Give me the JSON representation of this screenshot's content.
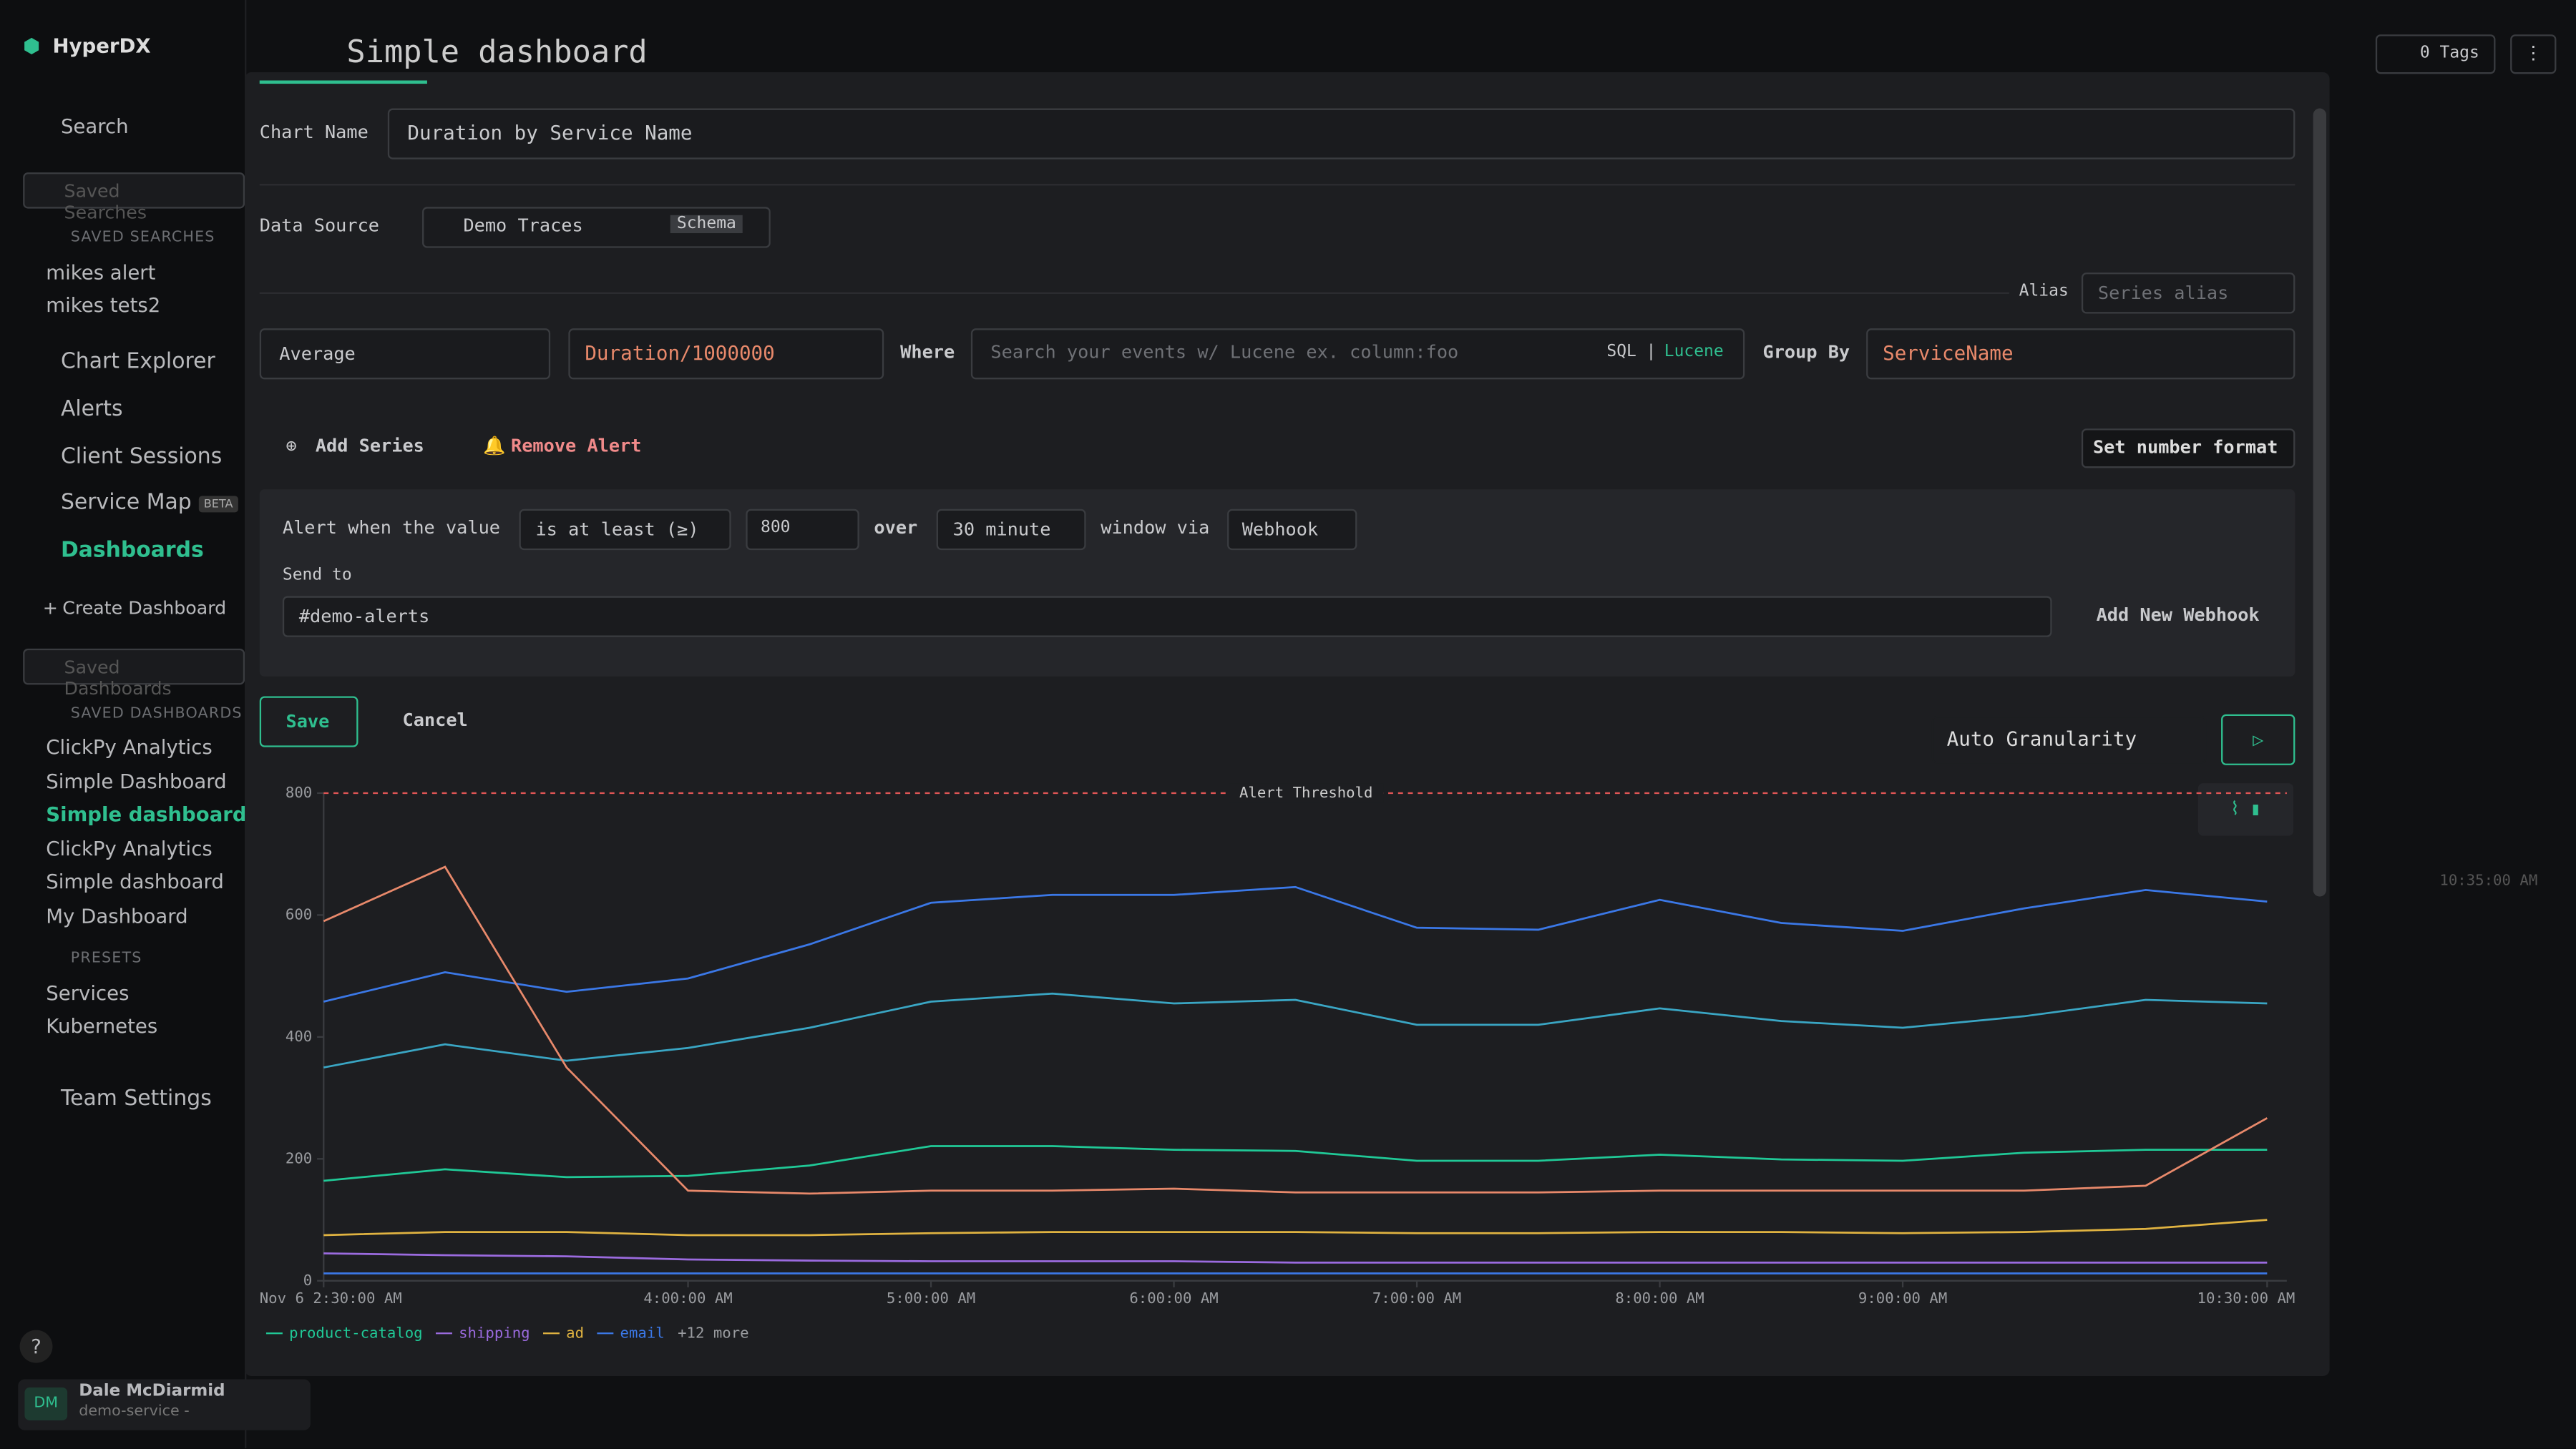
{
  "sidebar": {
    "brand": "HyperDX",
    "search": "Search",
    "saved_searches_placeholder": "Saved Searches",
    "saved_searches_heading": "SAVED SEARCHES",
    "saved_searches": [
      "mikes alert",
      "mikes tets2"
    ],
    "nav": [
      "Chart Explorer",
      "Alerts",
      "Client Sessions",
      "Service Map"
    ],
    "beta": "BETA",
    "dashboards": "Dashboards",
    "create_dashboard": "Create Dashboard",
    "saved_dashboards_placeholder": "Saved Dashboards",
    "saved_dashboards_heading": "SAVED DASHBOARDS",
    "saved_dashboards": [
      "ClickPy Analytics",
      "Simple Dashboard",
      "Simple dashboard",
      "ClickPy Analytics",
      "Simple dashboard",
      "My Dashboard"
    ],
    "presets_heading": "PRESETS",
    "presets": [
      "Services",
      "Kubernetes"
    ],
    "team_settings": "Team Settings",
    "help": "?",
    "user": {
      "initials": "DM",
      "name": "Dale McDiarmid",
      "team": "demo-service -"
    }
  },
  "header": {
    "title": "Simple dashboard",
    "tags": "0 Tags",
    "background_time": "10:35:00 AM"
  },
  "form": {
    "chart_name_label": "Chart Name",
    "chart_name": "Duration by Service Name",
    "data_source_label": "Data Source",
    "data_source": "Demo Traces",
    "schema": "Schema",
    "alias_label": "Alias",
    "alias_placeholder": "Series alias",
    "aggregation": "Average",
    "expression": "Duration/1000000",
    "where_label": "Where",
    "where_placeholder": "Search your events w/ Lucene ex. column:foo",
    "sql": "SQL",
    "separator": "|",
    "lucene": "Lucene",
    "group_by_label": "Group By",
    "group_by": "ServiceName",
    "add_series": "Add Series",
    "remove_alert": "Remove Alert",
    "number_format": "Set number format",
    "alert": {
      "prefix": "Alert when the value",
      "condition": "is at least (≥)",
      "threshold": "800",
      "over": "over",
      "window": "30 minute",
      "via": "window via",
      "channel": "Webhook",
      "send_to_label": "Send to",
      "send_to": "#demo-alerts",
      "add_webhook": "Add New Webhook"
    },
    "save": "Save",
    "cancel": "Cancel",
    "granularity": "Auto Granularity"
  },
  "chart_data": {
    "type": "line",
    "threshold": {
      "value": 800,
      "label": "Alert Threshold"
    },
    "x": [
      2.5,
      3,
      3.5,
      4,
      4.5,
      5,
      5.5,
      6,
      6.5,
      7,
      7.5,
      8,
      8.5,
      9,
      9.5,
      10,
      10.5
    ],
    "xlim": [
      2.5,
      10.5
    ],
    "xticks": [
      {
        "value": 2.5,
        "label": "Nov 6 2:30:00 AM"
      },
      {
        "value": 4,
        "label": "4:00:00 AM"
      },
      {
        "value": 5,
        "label": "5:00:00 AM"
      },
      {
        "value": 6,
        "label": "6:00:00 AM"
      },
      {
        "value": 7,
        "label": "7:00:00 AM"
      },
      {
        "value": 8,
        "label": "8:00:00 AM"
      },
      {
        "value": 9,
        "label": "9:00:00 AM"
      },
      {
        "value": 10.5,
        "label": "10:30:00 AM"
      }
    ],
    "ylim": [
      0,
      800
    ],
    "yticks": [
      0,
      200,
      400,
      600,
      800
    ],
    "series": [
      {
        "name": "product-catalog",
        "color": "#20c997",
        "values": [
          164,
          183,
          170,
          172,
          189,
          221,
          221,
          215,
          213,
          197,
          197,
          207,
          199,
          197,
          210,
          215,
          215
        ]
      },
      {
        "name": "shipping",
        "color": "#9b6bdf",
        "values": [
          45,
          42,
          40,
          35,
          33,
          32,
          32,
          32,
          30,
          30,
          30,
          30,
          30,
          30,
          30,
          30,
          30
        ]
      },
      {
        "name": "ad",
        "color": "#e0b341",
        "values": [
          75,
          80,
          80,
          75,
          75,
          78,
          80,
          80,
          80,
          78,
          78,
          80,
          80,
          78,
          80,
          85,
          100
        ]
      },
      {
        "name": "email",
        "color": "#3b78e7",
        "values": [
          12,
          12,
          12,
          12,
          12,
          12,
          12,
          12,
          12,
          12,
          12,
          12,
          12,
          12,
          12,
          12,
          12
        ]
      },
      {
        "color": "#3b78e7",
        "values": [
          458,
          506,
          474,
          496,
          552,
          620,
          633,
          633,
          646,
          579,
          576,
          625,
          587,
          574,
          611,
          641,
          622
        ]
      },
      {
        "color": "#3aa6c4",
        "values": [
          350,
          388,
          361,
          382,
          415,
          458,
          471,
          455,
          461,
          420,
          420,
          447,
          426,
          415,
          434,
          461,
          455
        ]
      },
      {
        "color": "#e8896b",
        "values": [
          590,
          679,
          350,
          148,
          143,
          148,
          148,
          151,
          145,
          145,
          145,
          148,
          148,
          148,
          148,
          156,
          267
        ]
      }
    ],
    "legend_more": "+12 more"
  }
}
